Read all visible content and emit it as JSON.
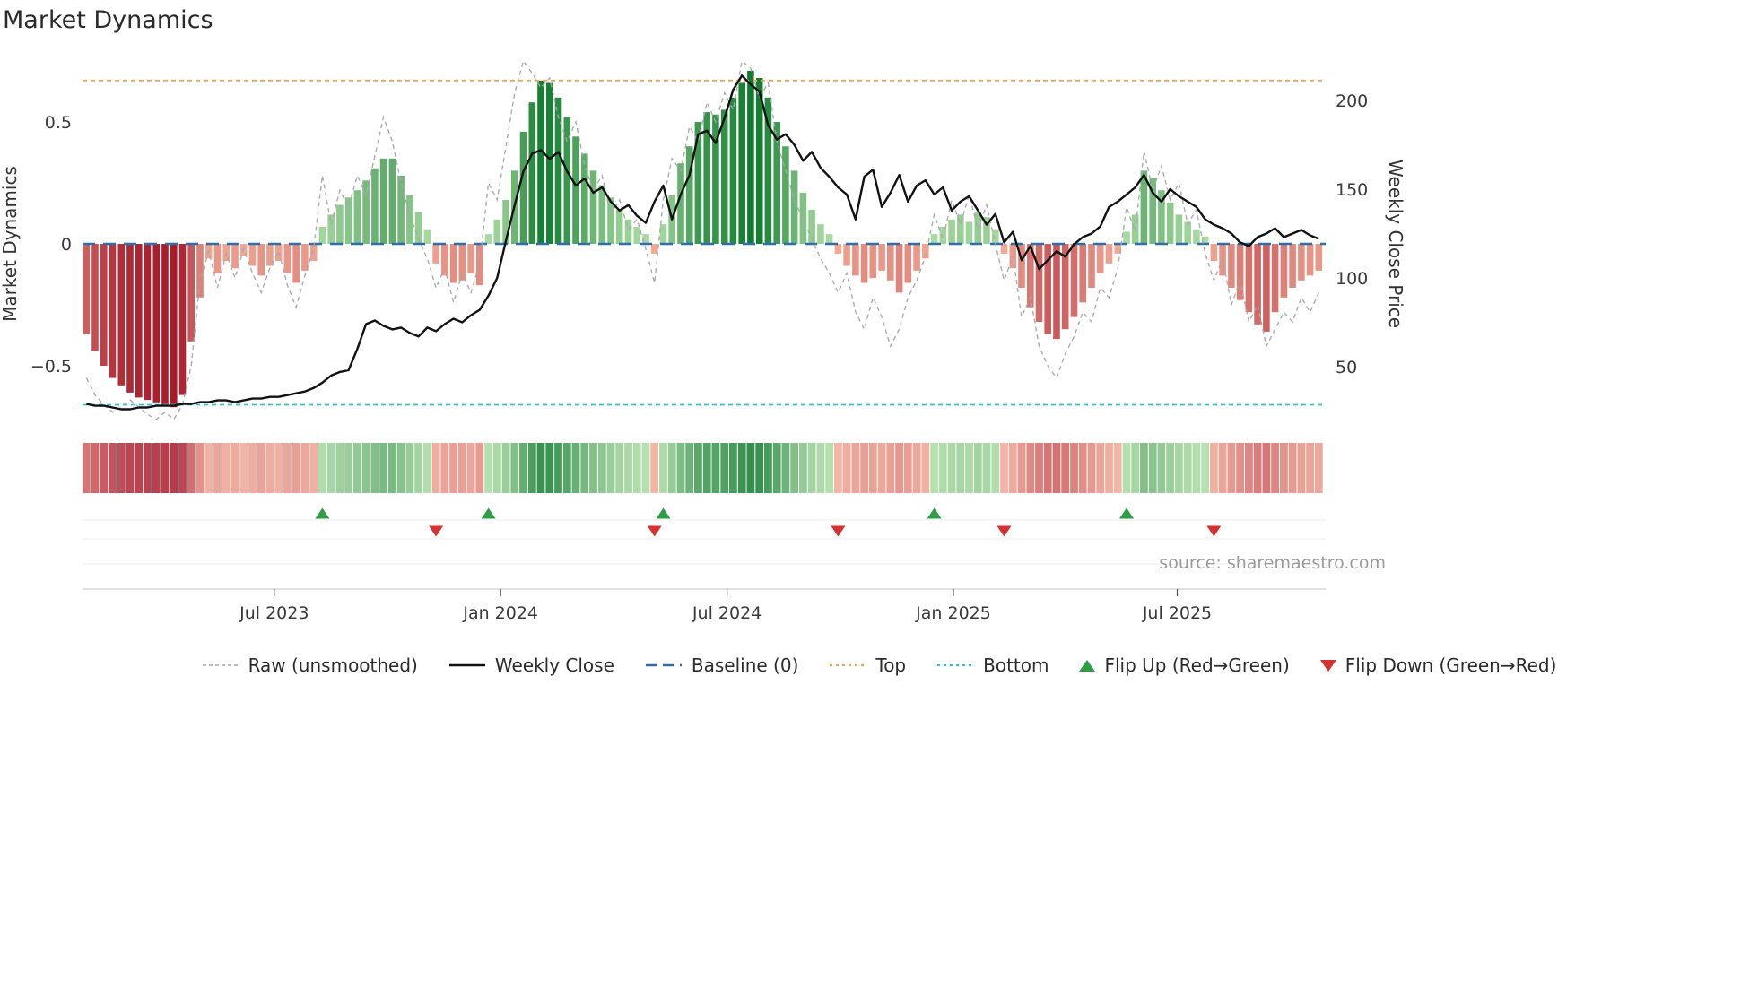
{
  "title": "Market Dynamics",
  "source": "source: sharemaestro.com",
  "legend": [
    "Raw (unsmoothed)",
    "Weekly Close",
    "Baseline (0)",
    "Top",
    "Bottom",
    "Flip Up (Red→Green)",
    "Flip Down (Green→Red)"
  ],
  "colors": {
    "bar_positive_strong": "#117a2f",
    "bar_positive_weak": "#b3e0aa",
    "bar_negative_strong": "#a61326",
    "bar_negative_weak": "#f6b29d",
    "weekly_close_line": "#121212",
    "raw_line": "#a8a8a8",
    "baseline": "#2b6fad",
    "top_line": "#f5a353",
    "bottom_line": "#2ec4d6",
    "flip_up_marker": "#2d9e44",
    "flip_down_marker": "#d63031",
    "gridline": "#ececec",
    "axis_spine": "#cfcfcf"
  },
  "chart_data": {
    "type": "bar",
    "title": "Market Dynamics",
    "ylabel_left": "Market Dynamics",
    "ylabel_right": "Weekly Close Price",
    "x_unit": "week",
    "n_points": 142,
    "x_tick_labels": [
      "Jul 2023",
      "Jan 2024",
      "Jul 2024",
      "Jan 2025",
      "Jul 2025"
    ],
    "x_tick_indices": [
      21.5,
      47.4,
      73.3,
      99.2,
      124.8
    ],
    "left_ticks": {
      "values": [
        0.5,
        0,
        -0.5
      ],
      "labels": [
        "0.5",
        "0",
        "−0.5"
      ]
    },
    "right_ticks": {
      "values": [
        200,
        150,
        100,
        50
      ],
      "labels": [
        "200",
        "150",
        "100",
        "50"
      ]
    },
    "left_ylim": [
      -0.73,
      0.78
    ],
    "right_ylim": [
      19,
      226
    ],
    "baseline": 0,
    "top": 0.67,
    "bottom": -0.66,
    "flip_up_indices": [
      27,
      46,
      66,
      97,
      119
    ],
    "flip_down_indices": [
      40,
      65,
      86,
      105,
      129
    ],
    "series": [
      {
        "name": "Market Dynamics (smoothed bars)",
        "style": "bar",
        "axis": "left",
        "values": [
          -0.37,
          -0.44,
          -0.5,
          -0.55,
          -0.58,
          -0.61,
          -0.63,
          -0.64,
          -0.65,
          -0.66,
          -0.67,
          -0.62,
          -0.4,
          -0.22,
          -0.06,
          -0.12,
          -0.07,
          -0.1,
          -0.05,
          -0.09,
          -0.13,
          -0.09,
          -0.07,
          -0.12,
          -0.16,
          -0.11,
          -0.07,
          0.07,
          0.12,
          0.16,
          0.19,
          0.22,
          0.26,
          0.31,
          0.35,
          0.35,
          0.28,
          0.2,
          0.13,
          0.06,
          -0.08,
          -0.13,
          -0.16,
          -0.15,
          -0.12,
          -0.17,
          0.04,
          0.1,
          0.18,
          0.3,
          0.46,
          0.58,
          0.67,
          0.66,
          0.6,
          0.52,
          0.44,
          0.37,
          0.3,
          0.24,
          0.19,
          0.14,
          0.1,
          0.07,
          0.04,
          -0.04,
          0.08,
          0.2,
          0.33,
          0.4,
          0.5,
          0.54,
          0.53,
          0.55,
          0.6,
          0.66,
          0.71,
          0.68,
          0.6,
          0.5,
          0.4,
          0.3,
          0.21,
          0.14,
          0.08,
          0.04,
          -0.04,
          -0.09,
          -0.13,
          -0.16,
          -0.14,
          -0.11,
          -0.15,
          -0.2,
          -0.16,
          -0.11,
          -0.06,
          0.04,
          0.07,
          0.1,
          0.12,
          0.09,
          0.13,
          0.11,
          0.06,
          -0.04,
          -0.1,
          -0.18,
          -0.26,
          -0.32,
          -0.37,
          -0.39,
          -0.35,
          -0.3,
          -0.24,
          -0.18,
          -0.12,
          -0.08,
          -0.04,
          0.05,
          0.12,
          0.3,
          0.27,
          0.22,
          0.17,
          0.12,
          0.09,
          0.06,
          0.03,
          -0.07,
          -0.13,
          -0.18,
          -0.23,
          -0.28,
          -0.33,
          -0.36,
          -0.28,
          -0.22,
          -0.18,
          -0.15,
          -0.13,
          -0.11
        ]
      },
      {
        "name": "Raw (unsmoothed)",
        "style": "line",
        "axis": "left",
        "values": [
          -0.55,
          -0.62,
          -0.66,
          -0.69,
          -0.67,
          -0.64,
          -0.67,
          -0.7,
          -0.72,
          -0.69,
          -0.72,
          -0.66,
          -0.5,
          -0.15,
          -0.03,
          -0.18,
          -0.04,
          -0.14,
          -0.02,
          -0.12,
          -0.2,
          -0.1,
          -0.03,
          -0.17,
          -0.26,
          -0.13,
          -0.02,
          0.28,
          0.08,
          0.22,
          0.15,
          0.28,
          0.2,
          0.36,
          0.52,
          0.42,
          0.25,
          0.12,
          0.02,
          -0.06,
          -0.18,
          -0.1,
          -0.24,
          -0.12,
          -0.2,
          -0.08,
          0.25,
          0.18,
          0.4,
          0.62,
          0.75,
          0.7,
          0.64,
          0.68,
          0.52,
          0.42,
          0.5,
          0.32,
          0.22,
          0.28,
          0.12,
          0.18,
          0.06,
          0.1,
          -0.02,
          -0.16,
          0.18,
          0.35,
          0.3,
          0.48,
          0.42,
          0.58,
          0.5,
          0.62,
          0.55,
          0.75,
          0.72,
          0.6,
          0.66,
          0.42,
          0.3,
          0.18,
          0.1,
          0.02,
          -0.06,
          -0.12,
          -0.2,
          -0.12,
          -0.28,
          -0.35,
          -0.22,
          -0.3,
          -0.42,
          -0.35,
          -0.22,
          -0.15,
          -0.05,
          0.12,
          0.02,
          0.18,
          0.08,
          0.2,
          0.06,
          0.16,
          0,
          -0.15,
          -0.05,
          -0.3,
          -0.22,
          -0.42,
          -0.5,
          -0.55,
          -0.45,
          -0.38,
          -0.28,
          -0.32,
          -0.18,
          -0.22,
          -0.1,
          0.15,
          0.05,
          0.38,
          0.22,
          0.32,
          0.18,
          0.25,
          0.08,
          0.14,
          -0.04,
          -0.15,
          -0.06,
          -0.25,
          -0.15,
          -0.32,
          -0.25,
          -0.42,
          -0.35,
          -0.28,
          -0.32,
          -0.22,
          -0.28,
          -0.2
        ]
      },
      {
        "name": "Weekly Close",
        "style": "line",
        "axis": "right",
        "values": [
          29,
          28,
          28,
          27,
          26,
          26,
          27,
          27,
          28,
          28,
          28,
          29,
          29,
          30,
          30,
          31,
          31,
          30,
          31,
          32,
          32,
          33,
          33,
          34,
          35,
          36,
          38,
          41,
          45,
          47,
          48,
          60,
          74,
          76,
          73,
          71,
          72,
          69,
          67,
          72,
          70,
          74,
          77,
          75,
          79,
          82,
          90,
          100,
          121,
          141,
          160,
          170,
          172,
          167,
          171,
          160,
          152,
          156,
          148,
          151,
          143,
          138,
          141,
          135,
          131,
          143,
          152,
          133,
          147,
          158,
          181,
          183,
          176,
          190,
          206,
          214,
          209,
          205,
          186,
          178,
          181,
          175,
          166,
          171,
          162,
          157,
          151,
          147,
          133,
          157,
          161,
          140,
          148,
          158,
          143,
          152,
          155,
          147,
          151,
          138,
          143,
          146,
          138,
          130,
          136,
          120,
          126,
          110,
          118,
          105,
          110,
          115,
          112,
          119,
          123,
          125,
          129,
          140,
          143,
          147,
          151,
          158,
          148,
          143,
          150,
          146,
          143,
          140,
          133,
          130,
          128,
          125,
          120,
          118,
          123,
          125,
          128,
          123,
          125,
          127,
          124,
          122
        ]
      }
    ]
  }
}
